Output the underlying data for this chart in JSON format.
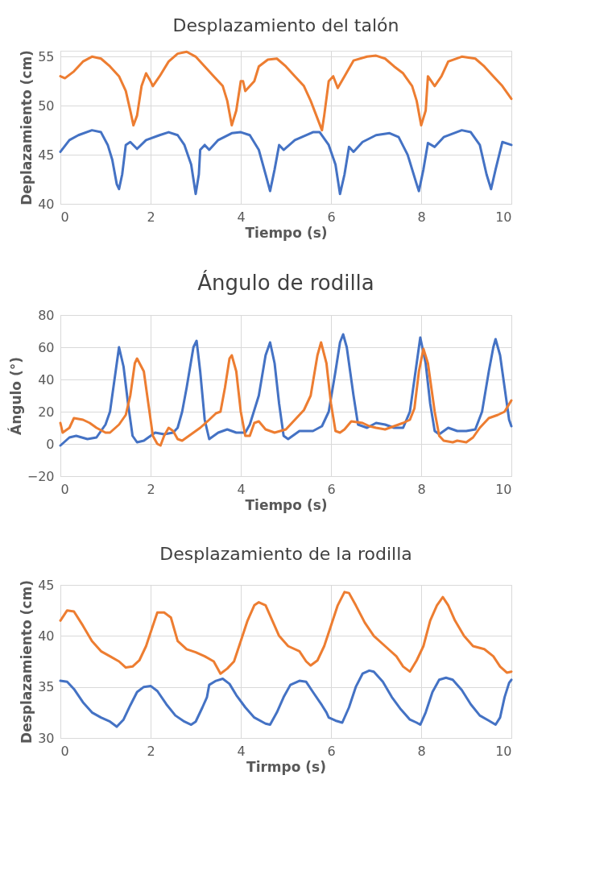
{
  "chart_data": [
    {
      "type": "line",
      "title": "Desplazamiento del talón",
      "xlabel": "Tiempo (s)",
      "ylabel": "Deplazamiento (cm)",
      "xlim": [
        0,
        10
      ],
      "xticks": [
        0,
        2,
        4,
        6,
        8,
        10
      ],
      "ylim": [
        40,
        55.6
      ],
      "yticks": [
        40,
        45,
        50,
        55
      ],
      "grid": true,
      "legend": false,
      "marker": "none",
      "line_style": "solid",
      "series": [
        {
          "color": "#ed7d31",
          "x": [
            0,
            0.1,
            0.3,
            0.5,
            0.7,
            0.9,
            1.1,
            1.3,
            1.45,
            1.55,
            1.62,
            1.7,
            1.8,
            1.9,
            2.0,
            2.05,
            2.2,
            2.4,
            2.6,
            2.8,
            3.0,
            3.2,
            3.4,
            3.6,
            3.7,
            3.8,
            3.9,
            4.0,
            4.05,
            4.1,
            4.3,
            4.4,
            4.6,
            4.8,
            5.0,
            5.2,
            5.4,
            5.55,
            5.8,
            5.85,
            5.95,
            6.05,
            6.15,
            6.3,
            6.5,
            6.8,
            7.0,
            7.2,
            7.4,
            7.6,
            7.8,
            7.9,
            8.0,
            8.1,
            8.15,
            8.3,
            8.45,
            8.6,
            8.9,
            9.2,
            9.4,
            9.6,
            9.8,
            10
          ],
          "values": [
            53,
            52.8,
            53.5,
            54.5,
            55,
            54.8,
            54,
            53,
            51.5,
            49.5,
            48,
            49,
            52,
            53.3,
            52.5,
            52,
            53,
            54.5,
            55.3,
            55.5,
            55,
            54,
            53,
            52,
            50.5,
            48,
            49.5,
            52.5,
            52.5,
            51.5,
            52.5,
            54,
            54.7,
            54.8,
            54,
            53,
            52,
            50.5,
            47.5,
            49,
            52.5,
            53,
            51.8,
            53,
            54.6,
            55,
            55.1,
            54.8,
            54,
            53.3,
            52,
            50.5,
            48,
            49.5,
            53,
            52,
            53,
            54.5,
            55,
            54.8,
            54,
            53,
            52,
            50.7
          ]
        },
        {
          "color": "#4472c4",
          "x": [
            0,
            0.2,
            0.4,
            0.7,
            0.9,
            1.05,
            1.15,
            1.25,
            1.3,
            1.37,
            1.45,
            1.55,
            1.7,
            1.9,
            2.2,
            2.4,
            2.6,
            2.75,
            2.9,
            3.0,
            3.07,
            3.1,
            3.2,
            3.3,
            3.5,
            3.8,
            4.0,
            4.2,
            4.4,
            4.55,
            4.65,
            4.75,
            4.85,
            4.95,
            5.2,
            5.6,
            5.75,
            5.95,
            6.1,
            6.2,
            6.3,
            6.4,
            6.5,
            6.7,
            7.0,
            7.3,
            7.5,
            7.7,
            7.9,
            7.95,
            8.05,
            8.15,
            8.3,
            8.5,
            8.9,
            9.1,
            9.3,
            9.45,
            9.55,
            9.65,
            9.8,
            10
          ],
          "values": [
            45.3,
            46.5,
            47,
            47.5,
            47.3,
            46,
            44.5,
            42,
            41.5,
            43,
            46,
            46.3,
            45.6,
            46.5,
            47,
            47.3,
            47,
            46,
            44,
            41,
            43,
            45.5,
            46,
            45.5,
            46.5,
            47.2,
            47.3,
            47,
            45.5,
            43,
            41.3,
            43.5,
            46,
            45.5,
            46.5,
            47.3,
            47.3,
            46,
            44,
            41,
            43,
            45.8,
            45.3,
            46.3,
            47,
            47.2,
            46.8,
            45,
            42,
            41.3,
            43.5,
            46.2,
            45.8,
            46.8,
            47.5,
            47.3,
            46,
            43,
            41.5,
            43.5,
            46.3,
            46
          ]
        }
      ]
    },
    {
      "type": "line",
      "title": "Ángulo de rodilla",
      "xlabel": "Tiempo (s)",
      "ylabel": "Ángulo (°)",
      "xlim": [
        0,
        10
      ],
      "xticks": [
        0,
        2,
        4,
        6,
        8,
        10
      ],
      "ylim": [
        -20,
        80
      ],
      "yticks": [
        -20,
        0,
        20,
        40,
        60,
        80
      ],
      "grid": true,
      "legend": false,
      "marker": "none",
      "line_style": "solid",
      "series": [
        {
          "color": "#4472c4",
          "x": [
            0,
            0.2,
            0.35,
            0.6,
            0.8,
            1.0,
            1.1,
            1.2,
            1.3,
            1.4,
            1.5,
            1.6,
            1.7,
            1.85,
            2.0,
            2.1,
            2.3,
            2.5,
            2.6,
            2.7,
            2.8,
            2.95,
            3.02,
            3.1,
            3.2,
            3.3,
            3.5,
            3.7,
            3.9,
            4.1,
            4.2,
            4.4,
            4.55,
            4.65,
            4.75,
            4.85,
            4.95,
            5.05,
            5.3,
            5.6,
            5.8,
            5.95,
            6.1,
            6.2,
            6.27,
            6.35,
            6.5,
            6.6,
            6.8,
            7.0,
            7.2,
            7.4,
            7.6,
            7.75,
            7.85,
            7.98,
            8.1,
            8.2,
            8.3,
            8.4,
            8.6,
            8.8,
            9.0,
            9.2,
            9.35,
            9.5,
            9.6,
            9.65,
            9.75,
            9.85,
            9.95,
            10
          ],
          "values": [
            -1,
            4,
            5,
            3,
            4,
            12,
            20,
            40,
            60,
            48,
            25,
            5,
            1,
            2,
            5,
            7,
            6,
            7,
            10,
            20,
            35,
            60,
            64,
            45,
            15,
            3,
            7,
            9,
            7,
            7,
            12,
            30,
            55,
            63,
            50,
            25,
            5,
            3,
            8,
            8,
            11,
            20,
            45,
            63,
            68,
            60,
            30,
            12,
            10,
            13,
            12,
            10,
            10,
            20,
            40,
            66,
            50,
            25,
            8,
            6,
            10,
            8,
            8,
            9,
            20,
            45,
            60,
            65,
            55,
            35,
            15,
            11
          ]
        },
        {
          "color": "#ed7d31",
          "x": [
            0,
            0.05,
            0.2,
            0.3,
            0.5,
            0.65,
            0.8,
            1.0,
            1.1,
            1.3,
            1.45,
            1.55,
            1.65,
            1.7,
            1.85,
            1.95,
            2.05,
            2.15,
            2.22,
            2.3,
            2.4,
            2.5,
            2.6,
            2.7,
            2.9,
            3.1,
            3.3,
            3.45,
            3.55,
            3.65,
            3.75,
            3.8,
            3.9,
            4.0,
            4.1,
            4.2,
            4.3,
            4.4,
            4.55,
            4.75,
            5.0,
            5.2,
            5.4,
            5.55,
            5.7,
            5.78,
            5.9,
            6.0,
            6.1,
            6.2,
            6.3,
            6.45,
            6.7,
            6.85,
            7.0,
            7.2,
            7.4,
            7.6,
            7.75,
            7.85,
            7.95,
            8.05,
            8.15,
            8.3,
            8.4,
            8.5,
            8.7,
            8.8,
            9.0,
            9.15,
            9.3,
            9.5,
            9.7,
            9.85,
            10
          ],
          "values": [
            13,
            7,
            10,
            16,
            15,
            13,
            10,
            7,
            7,
            12,
            18,
            30,
            50,
            53,
            45,
            25,
            5,
            0,
            -1,
            5,
            10,
            8,
            3,
            2,
            6,
            10,
            15,
            19,
            20,
            35,
            53,
            55,
            45,
            20,
            5,
            5,
            13,
            14,
            9,
            7,
            9,
            15,
            21,
            30,
            55,
            63,
            50,
            25,
            8,
            7,
            9,
            14,
            13,
            11,
            10,
            9,
            11,
            13,
            15,
            22,
            45,
            59,
            50,
            20,
            5,
            2,
            1,
            2,
            1,
            4,
            10,
            16,
            18,
            20,
            27
          ]
        }
      ]
    },
    {
      "type": "line",
      "title": "Desplazamiento de la rodilla",
      "xlabel": "Tirmpo (s)",
      "ylabel": "Desplazamiento (cm)",
      "xlim": [
        0,
        10
      ],
      "xticks": [
        0,
        2,
        4,
        6,
        8,
        10
      ],
      "ylim": [
        30,
        45
      ],
      "yticks": [
        30,
        35,
        40,
        45
      ],
      "grid": true,
      "legend": false,
      "marker": "none",
      "line_style": "solid",
      "series": [
        {
          "color": "#ed7d31",
          "x": [
            0,
            0.15,
            0.3,
            0.5,
            0.7,
            0.9,
            1.1,
            1.3,
            1.45,
            1.6,
            1.75,
            1.9,
            2.05,
            2.15,
            2.3,
            2.45,
            2.6,
            2.8,
            3.0,
            3.2,
            3.4,
            3.55,
            3.7,
            3.85,
            4.0,
            4.15,
            4.3,
            4.4,
            4.55,
            4.7,
            4.85,
            5.05,
            5.3,
            5.45,
            5.55,
            5.7,
            5.85,
            6.0,
            6.15,
            6.3,
            6.4,
            6.55,
            6.75,
            6.95,
            7.2,
            7.45,
            7.6,
            7.75,
            7.9,
            8.05,
            8.2,
            8.35,
            8.48,
            8.6,
            8.75,
            8.95,
            9.15,
            9.4,
            9.6,
            9.75,
            9.9,
            10
          ],
          "values": [
            41.5,
            42.5,
            42.4,
            41,
            39.5,
            38.5,
            38,
            37.5,
            36.9,
            37,
            37.6,
            39,
            41,
            42.3,
            42.3,
            41.8,
            39.5,
            38.7,
            38.4,
            38,
            37.5,
            36.3,
            36.8,
            37.5,
            39.5,
            41.5,
            43,
            43.3,
            43,
            41.5,
            40,
            39,
            38.5,
            37.5,
            37.1,
            37.6,
            39,
            41,
            43,
            44.3,
            44.2,
            43,
            41.3,
            40,
            39,
            38,
            37,
            36.5,
            37.6,
            39,
            41.5,
            43,
            43.8,
            43,
            41.5,
            40,
            39,
            38.7,
            38,
            37,
            36.4,
            36.5
          ]
        },
        {
          "color": "#4472c4",
          "x": [
            0,
            0.15,
            0.3,
            0.5,
            0.7,
            0.9,
            1.1,
            1.25,
            1.4,
            1.55,
            1.7,
            1.85,
            2.0,
            2.15,
            2.35,
            2.55,
            2.75,
            2.9,
            3.0,
            3.15,
            3.25,
            3.3,
            3.45,
            3.6,
            3.75,
            3.9,
            4.1,
            4.3,
            4.55,
            4.65,
            4.8,
            4.95,
            5.1,
            5.3,
            5.45,
            5.6,
            5.8,
            5.9,
            5.95,
            6.1,
            6.25,
            6.4,
            6.55,
            6.7,
            6.85,
            6.95,
            7.15,
            7.35,
            7.55,
            7.75,
            7.9,
            7.98,
            8.1,
            8.25,
            8.4,
            8.55,
            8.7,
            8.9,
            9.1,
            9.3,
            9.5,
            9.65,
            9.75,
            9.85,
            9.95,
            10
          ],
          "values": [
            35.6,
            35.5,
            34.8,
            33.5,
            32.5,
            32,
            31.6,
            31.1,
            31.8,
            33.2,
            34.5,
            35,
            35.1,
            34.6,
            33.3,
            32.2,
            31.6,
            31.3,
            31.6,
            33,
            34,
            35.2,
            35.6,
            35.8,
            35.3,
            34.2,
            33,
            32,
            31.4,
            31.3,
            32.5,
            34,
            35.2,
            35.6,
            35.5,
            34.5,
            33.2,
            32.5,
            32,
            31.7,
            31.5,
            33,
            35,
            36.3,
            36.6,
            36.5,
            35.5,
            34,
            32.8,
            31.8,
            31.5,
            31.3,
            32.5,
            34.5,
            35.7,
            35.9,
            35.7,
            34.7,
            33.3,
            32.2,
            31.7,
            31.3,
            32,
            34,
            35.4,
            35.7
          ]
        }
      ]
    }
  ]
}
